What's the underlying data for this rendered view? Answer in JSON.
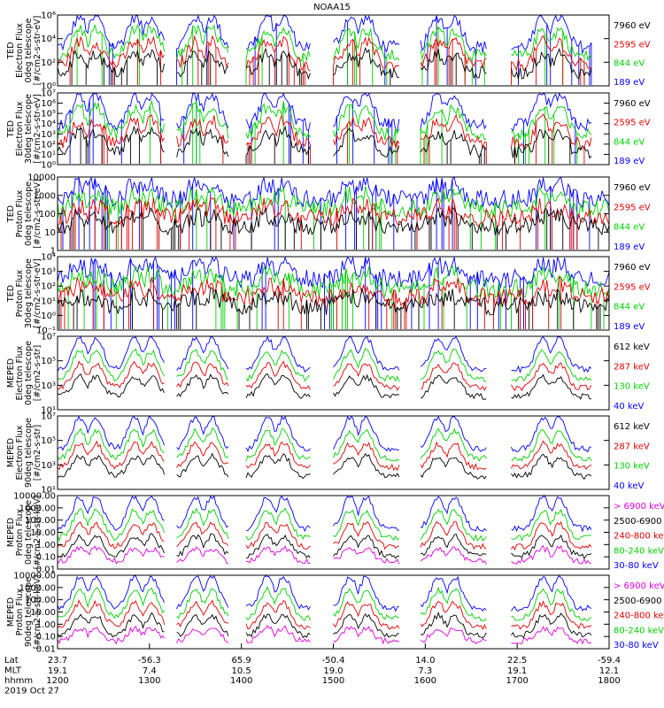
{
  "title": "NOAA15",
  "panels": [
    {
      "ylabel": [
        "TED",
        "Electron Flux",
        "0deg telescope",
        "[#/cm2-s-str-eV]"
      ],
      "scale": "log",
      "ylim": [
        1,
        1000000
      ],
      "yticks": [
        {
          "v": 1,
          "t": "10⁰"
        },
        {
          "v": 100,
          "t": "10²"
        },
        {
          "v": 10000,
          "t": "10⁴"
        },
        {
          "v": 1000000,
          "t": "10⁶"
        }
      ],
      "legend": [
        {
          "text": "7960 eV",
          "color": "#000000"
        },
        {
          "text": "2595 eV",
          "color": "#e00000"
        },
        {
          "text": "844 eV",
          "color": "#00d000"
        },
        {
          "text": "189 eV",
          "color": "#0000ff"
        }
      ]
    },
    {
      "ylabel": [
        "TED",
        "Electron Flux",
        "30deg telescope",
        "[#/cm2-s-str-eV]"
      ],
      "scale": "log",
      "ylim": [
        1,
        10000000
      ],
      "yticks": [
        {
          "v": 1,
          "t": "10⁰"
        },
        {
          "v": 10,
          "t": "10¹"
        },
        {
          "v": 100,
          "t": "10²"
        },
        {
          "v": 1000,
          "t": "10³"
        },
        {
          "v": 10000,
          "t": "10⁴"
        },
        {
          "v": 100000,
          "t": "10⁵"
        },
        {
          "v": 1000000,
          "t": "10⁶"
        },
        {
          "v": 10000000,
          "t": "10⁷"
        }
      ],
      "legend": [
        {
          "text": "7960 eV",
          "color": "#000000"
        },
        {
          "text": "2595 eV",
          "color": "#e00000"
        },
        {
          "text": "844 eV",
          "color": "#00d000"
        },
        {
          "text": "189 eV",
          "color": "#0000ff"
        }
      ]
    },
    {
      "ylabel": [
        "TED",
        "Proton Flux",
        "0deg telescope",
        "[#/cm2-s-str-eV]"
      ],
      "scale": "log",
      "ylim": [
        1,
        10000
      ],
      "yticks": [
        {
          "v": 1,
          "t": "1"
        },
        {
          "v": 10,
          "t": "10"
        },
        {
          "v": 100,
          "t": "100"
        },
        {
          "v": 1000,
          "t": "1000"
        },
        {
          "v": 10000,
          "t": "10000"
        }
      ],
      "legend": [
        {
          "text": "7960 eV",
          "color": "#000000"
        },
        {
          "text": "2595 eV",
          "color": "#e00000"
        },
        {
          "text": "844 eV",
          "color": "#00d000"
        },
        {
          "text": "189 eV",
          "color": "#0000ff"
        }
      ]
    },
    {
      "ylabel": [
        "TED",
        "Proton Flux",
        "30deg telescope",
        "[#/cm2-s-str-eV]"
      ],
      "scale": "log",
      "ylim": [
        0.1,
        10000
      ],
      "yticks": [
        {
          "v": 0.1,
          "t": "10⁻¹"
        },
        {
          "v": 1,
          "t": "10⁰"
        },
        {
          "v": 10,
          "t": "10¹"
        },
        {
          "v": 100,
          "t": "10²"
        },
        {
          "v": 1000,
          "t": "10³"
        },
        {
          "v": 10000,
          "t": "10⁴"
        }
      ],
      "legend": [
        {
          "text": "7960 eV",
          "color": "#000000"
        },
        {
          "text": "2595 eV",
          "color": "#e00000"
        },
        {
          "text": "844 eV",
          "color": "#00d000"
        },
        {
          "text": "189 eV",
          "color": "#0000ff"
        }
      ]
    },
    {
      "ylabel": [
        "MEPED",
        "Electron Flux",
        "0deg telescope",
        "[#/cm2-s-str]"
      ],
      "scale": "log",
      "ylim": [
        10,
        10000000
      ],
      "yticks": [
        {
          "v": 10,
          "t": "10¹"
        },
        {
          "v": 1000,
          "t": "10³"
        },
        {
          "v": 100000,
          "t": "10⁵"
        },
        {
          "v": 10000000,
          "t": "10⁷"
        }
      ],
      "legend": [
        {
          "text": "612 keV",
          "color": "#000000"
        },
        {
          "text": "287 keV",
          "color": "#e00000"
        },
        {
          "text": "130 keV",
          "color": "#00d000"
        },
        {
          "text": "40 keV",
          "color": "#0000ff"
        }
      ]
    },
    {
      "ylabel": [
        "MEPED",
        "Electron Flux",
        "90deg telescope",
        "[#/cm2-s-str]"
      ],
      "scale": "log",
      "ylim": [
        10,
        10000000
      ],
      "yticks": [
        {
          "v": 10,
          "t": "10¹"
        },
        {
          "v": 1000,
          "t": "10³"
        },
        {
          "v": 100000,
          "t": "10⁵"
        },
        {
          "v": 10000000,
          "t": "10⁷"
        }
      ],
      "legend": [
        {
          "text": "612 keV",
          "color": "#000000"
        },
        {
          "text": "287 keV",
          "color": "#e00000"
        },
        {
          "text": "130 keV",
          "color": "#00d000"
        },
        {
          "text": "40 keV",
          "color": "#0000ff"
        }
      ]
    },
    {
      "ylabel": [
        "MEPED",
        "Proton Flux",
        "0deg telescope",
        "[#/cm2-s-str-keV]"
      ],
      "scale": "log",
      "ylim": [
        0.01,
        10000
      ],
      "yticks": [
        {
          "v": 0.01,
          "t": "0.01"
        },
        {
          "v": 0.1,
          "t": "0.10"
        },
        {
          "v": 1,
          "t": "1.00"
        },
        {
          "v": 10,
          "t": "10.00"
        },
        {
          "v": 100,
          "t": "100.00"
        },
        {
          "v": 1000,
          "t": "1000.00"
        },
        {
          "v": 10000,
          "t": "10000.00"
        }
      ],
      "legend": [
        {
          "text": "> 6900 keV",
          "color": "#e000e0"
        },
        {
          "text": "2500-6900",
          "color": "#000000"
        },
        {
          "text": "240-800 keV",
          "color": "#e00000"
        },
        {
          "text": "80-240 keV",
          "color": "#00d000"
        },
        {
          "text": "30-80 keV",
          "color": "#0000ff"
        }
      ]
    },
    {
      "ylabel": [
        "MEPED",
        "Proton Flux",
        "90deg telescope",
        "[#/cm2-s-str-keV]"
      ],
      "scale": "log",
      "ylim": [
        0.01,
        10000
      ],
      "yticks": [
        {
          "v": 0.01,
          "t": "0.01"
        },
        {
          "v": 0.1,
          "t": "0.10"
        },
        {
          "v": 1,
          "t": "1.00"
        },
        {
          "v": 10,
          "t": "10.00"
        },
        {
          "v": 100,
          "t": "100.00"
        },
        {
          "v": 1000,
          "t": "1000.00"
        },
        {
          "v": 10000,
          "t": "10000.00"
        }
      ],
      "legend": [
        {
          "text": "> 6900 keV",
          "color": "#e000e0"
        },
        {
          "text": "2500-6900",
          "color": "#000000"
        },
        {
          "text": "240-800 keV",
          "color": "#e00000"
        },
        {
          "text": "80-240 keV",
          "color": "#00d000"
        },
        {
          "text": "30-80 keV",
          "color": "#0000ff"
        }
      ]
    }
  ],
  "xaxis": {
    "row_labels": [
      "Lat",
      "MLT",
      "hhmm",
      "2019 Oct 27"
    ],
    "ticks": [
      {
        "lat": "23.7",
        "mlt": "19.1",
        "hhmm": "1200"
      },
      {
        "lat": "-56.3",
        "mlt": "7.4",
        "hhmm": "1300"
      },
      {
        "lat": "65.9",
        "mlt": "10.5",
        "hhmm": "1400"
      },
      {
        "lat": "-50.4",
        "mlt": "19.0",
        "hhmm": "1500"
      },
      {
        "lat": "14.0",
        "mlt": "7.3",
        "hhmm": "1600"
      },
      {
        "lat": "22.5",
        "mlt": "19.1",
        "hhmm": "1700"
      },
      {
        "lat": "-59.4",
        "mlt": "12.1",
        "hhmm": "1800"
      }
    ]
  },
  "chart_data": {
    "type": "line",
    "title": "NOAA15",
    "x_range": [
      "1200",
      "1800"
    ],
    "x_ticks": [
      "1200",
      "1300",
      "1400",
      "1500",
      "1600",
      "1700",
      "1800"
    ],
    "pass_peaks_hhmm": [
      "1215",
      "1228",
      "1252",
      "1310",
      "1335",
      "1350",
      "1425",
      "1437",
      "1520",
      "1533",
      "1615",
      "1630",
      "1707",
      "1722"
    ],
    "series_note_per_panel": [
      {
        "panel": 0,
        "series": [
          {
            "name": "189 eV",
            "typical": 1000,
            "peak": 1000000
          },
          {
            "name": "844 eV",
            "typical": 100,
            "peak": 100000
          },
          {
            "name": "2595 eV",
            "typical": 30,
            "peak": 10000
          },
          {
            "name": "7960 eV",
            "typical": 10,
            "peak": 300
          }
        ]
      },
      {
        "panel": 1,
        "series": [
          {
            "name": "189 eV",
            "typical": 1000,
            "peak": 1000000
          },
          {
            "name": "844 eV",
            "typical": 100,
            "peak": 100000
          },
          {
            "name": "2595 eV",
            "typical": 30,
            "peak": 10000
          },
          {
            "name": "7960 eV",
            "typical": 10,
            "peak": 1000
          }
        ]
      },
      {
        "panel": 2,
        "series": [
          {
            "name": "189 eV",
            "typical": 150,
            "peak": 8000
          },
          {
            "name": "844 eV",
            "typical": 200,
            "peak": 1000
          },
          {
            "name": "2595 eV",
            "typical": 60,
            "peak": 600
          },
          {
            "name": "7960 eV",
            "typical": 10,
            "peak": 300
          }
        ]
      },
      {
        "panel": 3,
        "series": [
          {
            "name": "189 eV",
            "typical": 100,
            "peak": 3000
          },
          {
            "name": "844 eV",
            "typical": 80,
            "peak": 300
          },
          {
            "name": "2595 eV",
            "typical": 10,
            "peak": 300
          },
          {
            "name": "7960 eV",
            "typical": 3,
            "peak": 100
          }
        ]
      },
      {
        "panel": 4,
        "series": [
          {
            "name": "40 keV",
            "typical": 1000,
            "peak": 10000000
          },
          {
            "name": "130 keV",
            "typical": 300,
            "peak": 100000
          },
          {
            "name": "287 keV",
            "typical": 200,
            "peak": 30000
          },
          {
            "name": "612 keV",
            "typical": 150,
            "peak": 10000
          }
        ]
      },
      {
        "panel": 5,
        "series": [
          {
            "name": "40 keV",
            "typical": 1000,
            "peak": 10000000
          },
          {
            "name": "130 keV",
            "typical": 300,
            "peak": 1000000
          },
          {
            "name": "287 keV",
            "typical": 200,
            "peak": 100000
          },
          {
            "name": "612 keV",
            "typical": 100,
            "peak": 10000
          }
        ]
      },
      {
        "panel": 6,
        "series": [
          {
            "name": "30-80 keV",
            "typical": 2,
            "peak": 10000
          },
          {
            "name": "80-240 keV",
            "typical": 1,
            "peak": 100
          },
          {
            "name": "240-800 keV",
            "typical": 0.1,
            "peak": 10
          },
          {
            "name": "2500-6900",
            "typical": 0.05,
            "peak": 0.3
          },
          {
            "name": "> 6900 keV",
            "typical": 0.02,
            "peak": 0.05
          }
        ]
      },
      {
        "panel": 7,
        "series": [
          {
            "name": "30-80 keV",
            "typical": 2,
            "peak": 10000
          },
          {
            "name": "80-240 keV",
            "typical": 1,
            "peak": 100
          },
          {
            "name": "240-800 keV",
            "typical": 0.1,
            "peak": 10
          },
          {
            "name": "2500-6900",
            "typical": 0.05,
            "peak": 0.3
          },
          {
            "name": "> 6900 keV",
            "typical": 0.02,
            "peak": 0.05
          }
        ]
      }
    ]
  }
}
